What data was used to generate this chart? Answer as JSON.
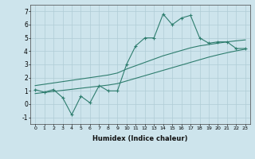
{
  "xlabel": "Humidex (Indice chaleur)",
  "x_data": [
    0,
    1,
    2,
    3,
    4,
    5,
    6,
    7,
    8,
    9,
    10,
    11,
    12,
    13,
    14,
    15,
    16,
    17,
    18,
    19,
    20,
    21,
    22,
    23
  ],
  "y_main": [
    1.1,
    0.9,
    1.1,
    0.5,
    -0.8,
    0.6,
    0.1,
    1.4,
    1.0,
    1.0,
    3.0,
    4.4,
    5.0,
    5.0,
    6.8,
    6.0,
    6.5,
    6.7,
    5.0,
    4.6,
    4.7,
    4.7,
    4.2,
    4.2
  ],
  "y_upper": [
    1.4,
    1.5,
    1.6,
    1.7,
    1.8,
    1.9,
    2.0,
    2.1,
    2.2,
    2.35,
    2.65,
    2.9,
    3.15,
    3.4,
    3.65,
    3.85,
    4.05,
    4.25,
    4.4,
    4.5,
    4.6,
    4.7,
    4.78,
    4.85
  ],
  "y_lower": [
    0.8,
    0.88,
    0.96,
    1.04,
    1.12,
    1.2,
    1.28,
    1.36,
    1.44,
    1.55,
    1.75,
    1.95,
    2.15,
    2.35,
    2.55,
    2.75,
    2.95,
    3.15,
    3.35,
    3.55,
    3.72,
    3.88,
    4.02,
    4.15
  ],
  "line_color": "#2e7d6e",
  "bg_color": "#cde4ec",
  "grid_color": "#b0cdd6",
  "ylim": [
    -1.5,
    7.5
  ],
  "yticks": [
    -1,
    0,
    1,
    2,
    3,
    4,
    5,
    6,
    7
  ],
  "xlim": [
    -0.5,
    23.5
  ],
  "figsize": [
    3.2,
    2.0
  ],
  "dpi": 100
}
